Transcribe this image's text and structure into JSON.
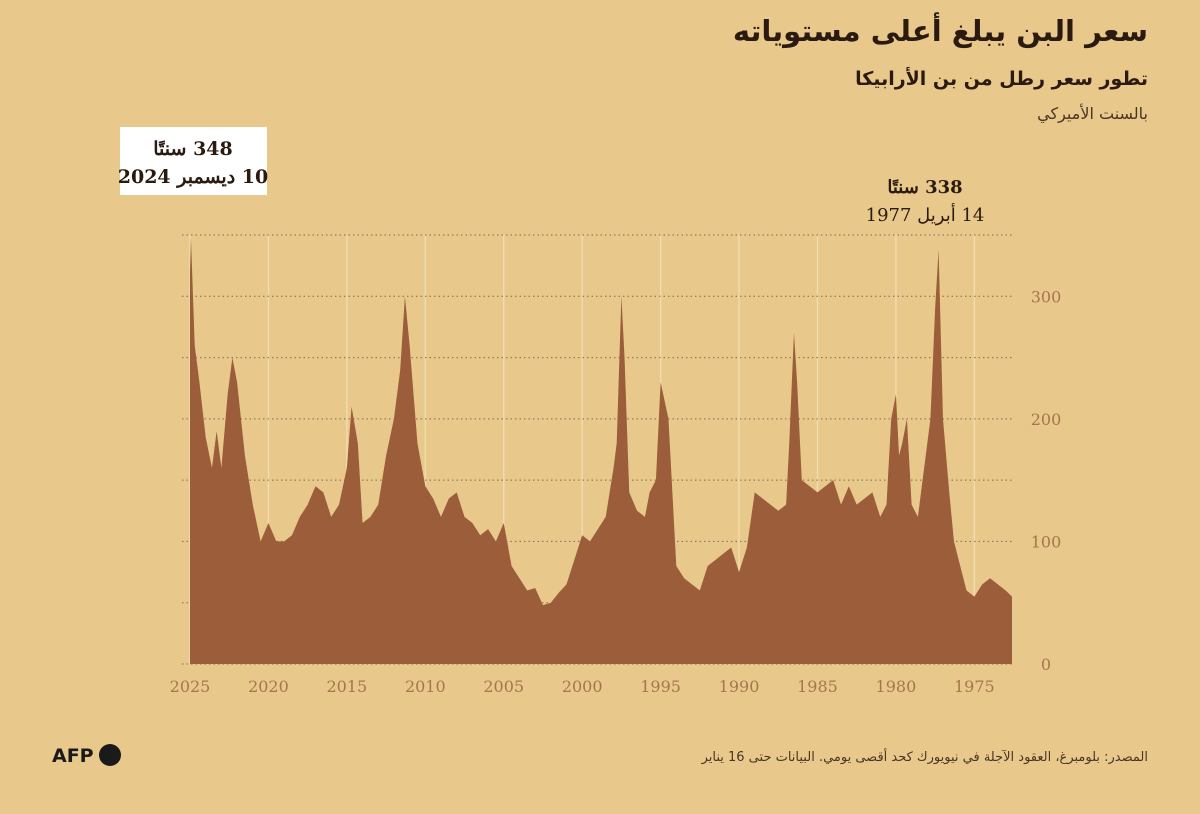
{
  "chart_data": {
    "type": "area",
    "title": "سعر البن يبلغ أعلى مستوياته",
    "subtitle": "تطور سعر رطل من بن الأرابيكا",
    "unit_label": "بالسنت الأميركي",
    "source": "المصدر: بلومبرغ، العقود الآجلة في نيويورك كحد أقصى يومي. البيانات حتى 16 يناير",
    "logo": "AFP",
    "annotations": [
      {
        "value_text": "348 سنتًا",
        "date": "10 ديسمبر 2024"
      },
      {
        "value_text": "338 سنتًا",
        "date": "14 أبريل 1977"
      }
    ],
    "color": "#9b5d3a",
    "grid": true,
    "xlim": [
      2025,
      1972.6
    ],
    "xticks": [
      2025,
      2020,
      2015,
      2010,
      2005,
      2000,
      1995,
      1990,
      1985,
      1980,
      1975
    ],
    "ylim": [
      0,
      350
    ],
    "yticks": [
      0,
      100,
      200,
      300
    ],
    "minor_yticks": [
      50,
      150,
      250,
      350
    ],
    "x": [
      1972.6,
      1973,
      1973.5,
      1974,
      1974.5,
      1975,
      1975.5,
      1976,
      1976.3,
      1976.6,
      1977,
      1977.28,
      1977.5,
      1977.8,
      1978,
      1978.3,
      1978.6,
      1979,
      1979.3,
      1979.6,
      1979.8,
      1980,
      1980.3,
      1980.6,
      1981,
      1981.5,
      1982,
      1982.5,
      1983,
      1983.5,
      1984,
      1984.5,
      1985,
      1985.5,
      1986,
      1986.3,
      1986.5,
      1986.8,
      1987,
      1987.5,
      1988,
      1988.5,
      1989,
      1989.5,
      1990,
      1990.5,
      1991,
      1991.5,
      1992,
      1992.5,
      1993,
      1993.5,
      1994,
      1994.5,
      1995,
      1995.3,
      1995.7,
      1996,
      1996.5,
      1997,
      1997.3,
      1997.5,
      1997.8,
      1998,
      1998.5,
      1999,
      1999.5,
      2000,
      2000.5,
      2001,
      2001.5,
      2002,
      2002.5,
      2003,
      2003.5,
      2004,
      2004.5,
      2005,
      2005.5,
      2006,
      2006.5,
      2007,
      2007.5,
      2008,
      2008.5,
      2009,
      2009.5,
      2010,
      2010.5,
      2011,
      2011.3,
      2011.6,
      2012,
      2012.5,
      2013,
      2013.5,
      2014,
      2014.3,
      2014.7,
      2015,
      2015.5,
      2016,
      2016.5,
      2017,
      2017.5,
      2018,
      2018.5,
      2019,
      2019.5,
      2020,
      2020.5,
      2021,
      2021.5,
      2022,
      2022.3,
      2022.6,
      2022.9,
      2023,
      2023.3,
      2023.6,
      2024,
      2024.4,
      2024.7,
      2024.94,
      2025
    ],
    "values": [
      55,
      60,
      65,
      70,
      65,
      55,
      60,
      85,
      100,
      140,
      200,
      338,
      290,
      200,
      180,
      150,
      120,
      130,
      200,
      180,
      170,
      220,
      200,
      130,
      120,
      140,
      135,
      130,
      145,
      130,
      150,
      145,
      140,
      145,
      150,
      230,
      270,
      180,
      130,
      125,
      130,
      135,
      140,
      95,
      75,
      95,
      90,
      85,
      80,
      60,
      65,
      70,
      80,
      200,
      230,
      150,
      140,
      120,
      125,
      140,
      250,
      300,
      180,
      160,
      120,
      110,
      100,
      105,
      85,
      65,
      58,
      50,
      48,
      62,
      60,
      70,
      80,
      115,
      100,
      110,
      105,
      115,
      120,
      140,
      135,
      120,
      135,
      145,
      180,
      260,
      300,
      240,
      200,
      170,
      130,
      120,
      115,
      180,
      210,
      160,
      130,
      120,
      140,
      145,
      130,
      120,
      105,
      100,
      100,
      115,
      100,
      130,
      170,
      230,
      250,
      220,
      175,
      160,
      190,
      160,
      185,
      230,
      260,
      348,
      320
    ]
  }
}
